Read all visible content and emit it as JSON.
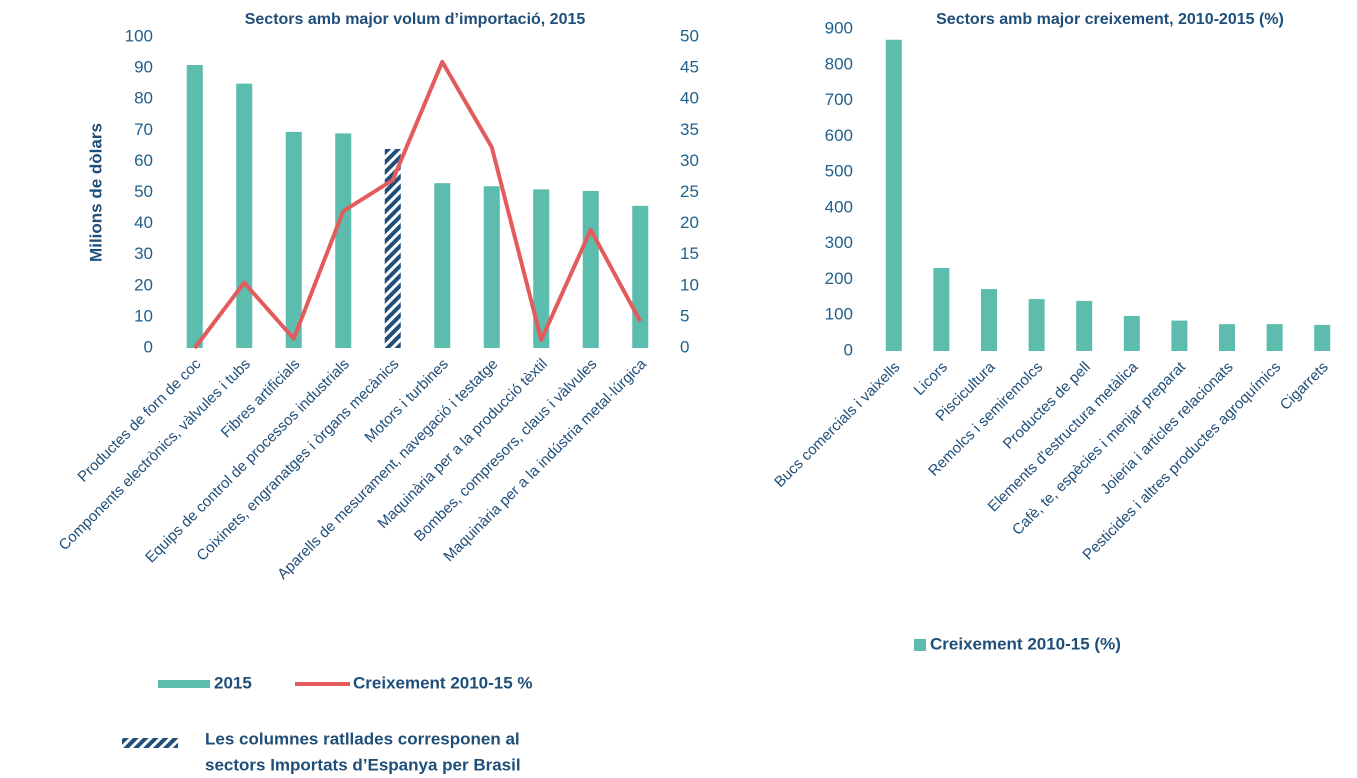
{
  "chart_data": [
    {
      "type": "bar",
      "title": "Sectors amb major volum d’importació, 2015",
      "ylabel": "Milions de dòlars",
      "categories": [
        "Productes de forn de coc",
        "Components electrònics, vàlvules i tubs",
        "Fibres artificials",
        "Equips de control de processos industrials",
        "Coixinets, engranatges i òrgans mecànics",
        "Motors i turbines",
        "Aparells de mesurament, navegació i testatge",
        "Maquinària per a la producció tèxtil",
        "Bombes, compresors, claus i vàlvules",
        "Maquinària per a la indústria metal·lúrgica"
      ],
      "series": [
        {
          "name": "2015",
          "type": "bar",
          "color": "#5cbcae",
          "hatch_color": "#1f4e79",
          "hatched": [
            false,
            false,
            false,
            false,
            true,
            false,
            false,
            false,
            false,
            false
          ],
          "values": [
            91,
            85,
            69.5,
            69,
            64,
            53,
            52,
            51,
            50.5,
            45.7
          ]
        },
        {
          "name": "Creixement 2010-15 %",
          "type": "line",
          "axis": "y2",
          "color": "#e35b5b",
          "values": [
            0,
            10.5,
            1.5,
            22,
            27,
            46,
            32.3,
            1.3,
            19,
            4.3
          ]
        }
      ],
      "ylim": [
        0,
        100
      ],
      "yticks": [
        0,
        10,
        20,
        30,
        40,
        50,
        60,
        70,
        80,
        90,
        100
      ],
      "y2lim": [
        0,
        50
      ],
      "y2ticks": [
        0,
        5,
        10,
        15,
        20,
        25,
        30,
        35,
        40,
        45,
        50
      ],
      "grid": false,
      "legend": "bottom",
      "note": [
        "Les columnes ratllades corresponen al",
        "sectors Importats d’Espanya per Brasil"
      ]
    },
    {
      "type": "bar",
      "title": "Sectors amb major creixement, 2010-2015 (%)",
      "categories": [
        "Bucs comercials i vaixells",
        "Licors",
        "Piscicultura",
        "Remolcs i semiremolcs",
        "Productes de pell",
        "Elements d'estructura metàlica",
        "Cafè, te, espècies i menjar preparat",
        "Joieria i articles relacionats",
        "Pesticides i altres productes agroquímics",
        "Cigarrets"
      ],
      "series": [
        {
          "name": "Creixement 2010-15 (%)",
          "type": "bar",
          "color": "#5cbcae",
          "values": [
            870,
            232,
            173,
            145,
            140,
            98,
            85,
            75,
            75,
            73
          ]
        }
      ],
      "ylim": [
        0,
        900
      ],
      "yticks": [
        0,
        100,
        200,
        300,
        400,
        500,
        600,
        700,
        800,
        900
      ],
      "grid": false,
      "legend": "bottom"
    }
  ]
}
